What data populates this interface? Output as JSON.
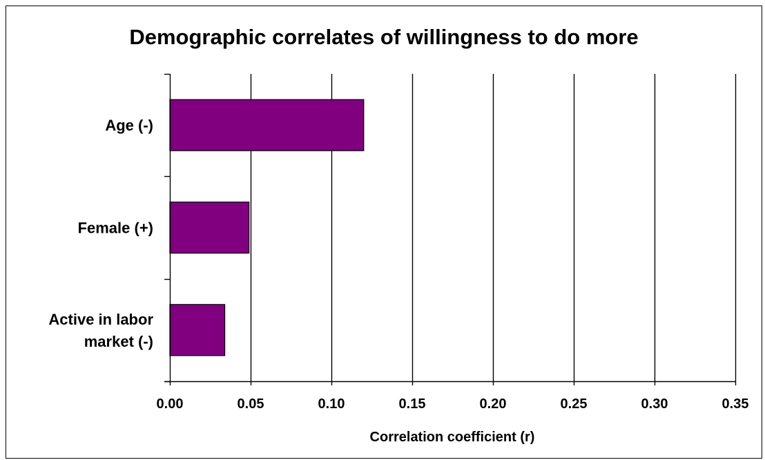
{
  "chart_data": {
    "type": "bar",
    "orientation": "horizontal",
    "title": "Demographic correlates of willingness to do more",
    "xlabel": "Correlation coefficient (r)",
    "ylabel": "",
    "categories": [
      [
        "Age (-)"
      ],
      [
        "Female (+)"
      ],
      [
        "Active in labor",
        "market (-)"
      ]
    ],
    "values": [
      0.12,
      0.049,
      0.034
    ],
    "xlim": [
      0,
      0.35
    ],
    "xticks": [
      "0.00",
      "0.05",
      "0.10",
      "0.15",
      "0.20",
      "0.25",
      "0.30",
      "0.35"
    ],
    "grid": "vertical",
    "legend": "none",
    "colors": {
      "bar": "#800080",
      "gridline": "#000000",
      "background": "#ffffff"
    }
  }
}
